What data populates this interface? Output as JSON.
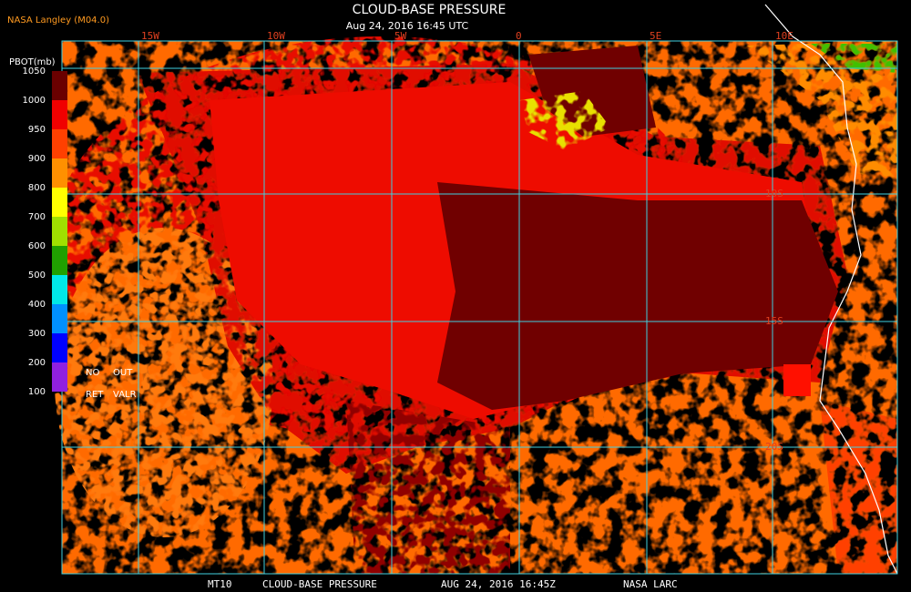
{
  "header": {
    "source": "NASA Langley (M04.0)",
    "title": "CLOUD-BASE PRESSURE",
    "subtitle": "Aug 24, 2016 16:45 UTC"
  },
  "legend": {
    "label": "PBOT(mb)",
    "ticks": [
      "1050",
      "1000",
      "950",
      "900",
      "800",
      "700",
      "600",
      "500",
      "400",
      "300",
      "200",
      "100"
    ],
    "notes": [
      "NO",
      "OUT",
      "RET",
      "VALR"
    ]
  },
  "map": {
    "longitudes": [
      "15W",
      "10W",
      "5W",
      "0",
      "5E",
      "10E"
    ],
    "latitudes": [
      "10S",
      "15S",
      "20S"
    ]
  },
  "footer": [
    "MT10",
    "CLOUD-BASE PRESSURE",
    "AUG 24, 2016 16:45Z",
    "NASA LARC"
  ]
}
